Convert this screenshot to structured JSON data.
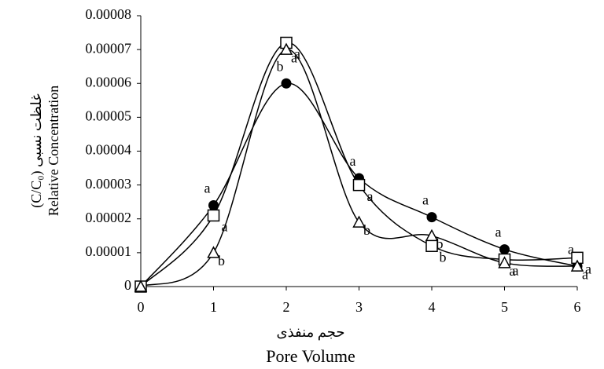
{
  "chart_data": {
    "type": "line",
    "x_label_fa": "حجم منفذی",
    "x_label": "Pore Volume",
    "y_label_fa": "(C/C₀) غلظت نسبی",
    "y_label": "Relative  Concentration",
    "x": [
      0,
      1,
      2,
      3,
      4,
      5,
      6
    ],
    "series": [
      {
        "marker": "circle",
        "color": "#000000",
        "values": [
          0,
          2.4e-05,
          6e-05,
          3.2e-05,
          2.05e-05,
          1.1e-05,
          6e-06
        ],
        "letters": [
          "",
          "a",
          "b",
          "a",
          "a",
          "a",
          "a"
        ]
      },
      {
        "marker": "square",
        "color": "#000000",
        "values": [
          0,
          2.1e-05,
          7.2e-05,
          3e-05,
          1.2e-05,
          8e-06,
          8.5e-06
        ],
        "letters": [
          "",
          "a",
          "a",
          "a",
          "b",
          "a",
          "a"
        ]
      },
      {
        "marker": "triangle",
        "color": "#000000",
        "values": [
          0,
          1e-05,
          7e-05,
          1.9e-05,
          1.5e-05,
          7e-06,
          6e-06
        ],
        "letters": [
          "",
          "b",
          "a",
          "b",
          "b",
          "a",
          "a"
        ]
      }
    ],
    "xlim": [
      0,
      6
    ],
    "xticks": [
      0,
      1,
      2,
      3,
      4,
      5,
      6
    ],
    "ylim": [
      0,
      8e-05
    ],
    "yticks": [
      0,
      1e-05,
      2e-05,
      3e-05,
      4e-05,
      5e-05,
      6e-05,
      7e-05,
      8e-05
    ],
    "grid": false
  }
}
